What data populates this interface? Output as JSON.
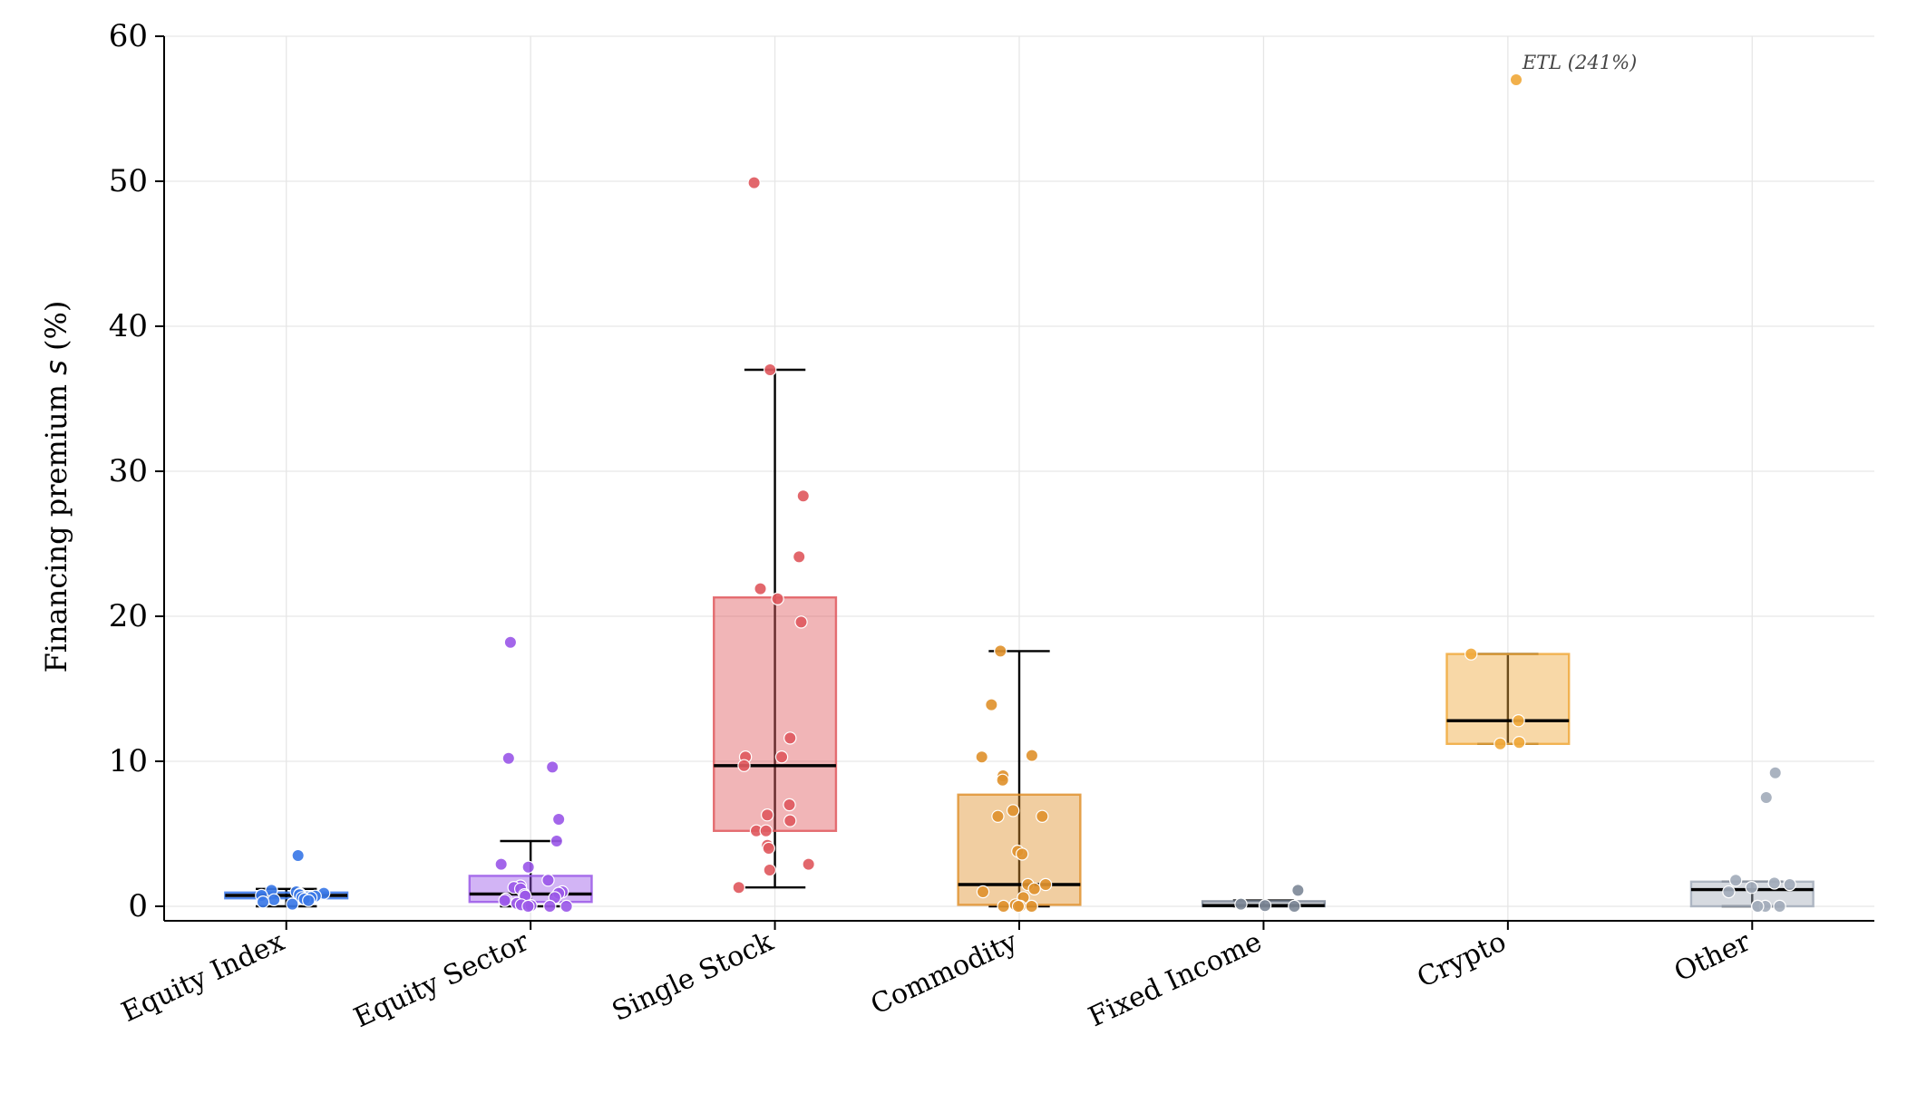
{
  "chart_data": {
    "type": "box",
    "title": "",
    "xlabel": "",
    "ylabel_prefix": "Financing premium ",
    "ylabel_symbol": "s",
    "ylabel_suffix": " (%)",
    "ylim": [
      -1,
      60
    ],
    "yticks": [
      0,
      10,
      20,
      30,
      40,
      50,
      60
    ],
    "grid": true,
    "categories": [
      "Equity Index",
      "Equity Sector",
      "Single Stock",
      "Commodity",
      "Fixed Income",
      "Crypto",
      "Other"
    ],
    "series": [
      {
        "name": "Equity Index",
        "color": "#3b78e7",
        "box": {
          "whisker_low": 0.0,
          "q1": 0.55,
          "median": 0.75,
          "q3": 0.95,
          "whisker_high": 1.2
        },
        "points": [
          3.5,
          1.1,
          1.0,
          0.9,
          0.85,
          0.8,
          0.75,
          0.7,
          0.6,
          0.6,
          0.5,
          0.45,
          0.4,
          0.3,
          0.15
        ]
      },
      {
        "name": "Equity Sector",
        "color": "#9b59e8",
        "box": {
          "whisker_low": 0.0,
          "q1": 0.3,
          "median": 0.85,
          "q3": 2.1,
          "whisker_high": 4.5
        },
        "points": [
          18.2,
          10.2,
          9.6,
          6.0,
          4.5,
          2.9,
          2.7,
          1.8,
          1.4,
          1.3,
          1.2,
          1.0,
          0.9,
          0.8,
          0.7,
          0.6,
          0.5,
          0.4,
          0.2,
          0.1,
          0.05,
          0.0,
          0.0,
          0.0
        ]
      },
      {
        "name": "Single Stock",
        "color": "#e05a5f",
        "box": {
          "whisker_low": 1.3,
          "q1": 5.2,
          "median": 9.7,
          "q3": 21.3,
          "whisker_high": 37.0
        },
        "points": [
          49.9,
          37.0,
          28.3,
          24.1,
          21.9,
          21.2,
          19.6,
          11.6,
          10.3,
          10.3,
          9.7,
          7.0,
          6.3,
          5.9,
          5.2,
          5.2,
          4.2,
          4.0,
          2.9,
          2.5,
          1.3
        ]
      },
      {
        "name": "Commodity",
        "color": "#e0922f",
        "box": {
          "whisker_low": 0.0,
          "q1": 0.1,
          "median": 1.5,
          "q3": 7.7,
          "whisker_high": 17.6
        },
        "points": [
          17.6,
          13.9,
          10.4,
          10.3,
          9.0,
          8.7,
          6.6,
          6.2,
          6.2,
          3.8,
          3.6,
          1.5,
          1.5,
          1.2,
          1.0,
          0.6,
          0.1,
          0.0,
          0.0,
          0.0,
          0.0
        ]
      },
      {
        "name": "Fixed Income",
        "color": "#7f8a99",
        "box": {
          "whisker_low": 0.0,
          "q1": 0.0,
          "median": 0.05,
          "q3": 0.35,
          "whisker_high": 0.4
        },
        "points": [
          1.1,
          0.15,
          0.05,
          0.0
        ]
      },
      {
        "name": "Crypto",
        "color": "#f0a93c",
        "box": {
          "whisker_low": 11.2,
          "q1": 11.2,
          "median": 12.8,
          "q3": 17.4,
          "whisker_high": 17.4
        },
        "points": [
          57.0,
          17.4,
          12.8,
          11.3,
          11.2
        ]
      },
      {
        "name": "Other",
        "color": "#a3adbb",
        "box": {
          "whisker_low": 0.0,
          "q1": 0.0,
          "median": 1.15,
          "q3": 1.7,
          "whisker_high": 1.7
        },
        "points": [
          9.2,
          7.5,
          1.8,
          1.6,
          1.5,
          1.3,
          1.0,
          0.0,
          0.0,
          0.0,
          0.0
        ]
      }
    ],
    "annotations": [
      {
        "text": "ETL (241%)",
        "category": "Crypto",
        "y": 57.0
      }
    ]
  }
}
